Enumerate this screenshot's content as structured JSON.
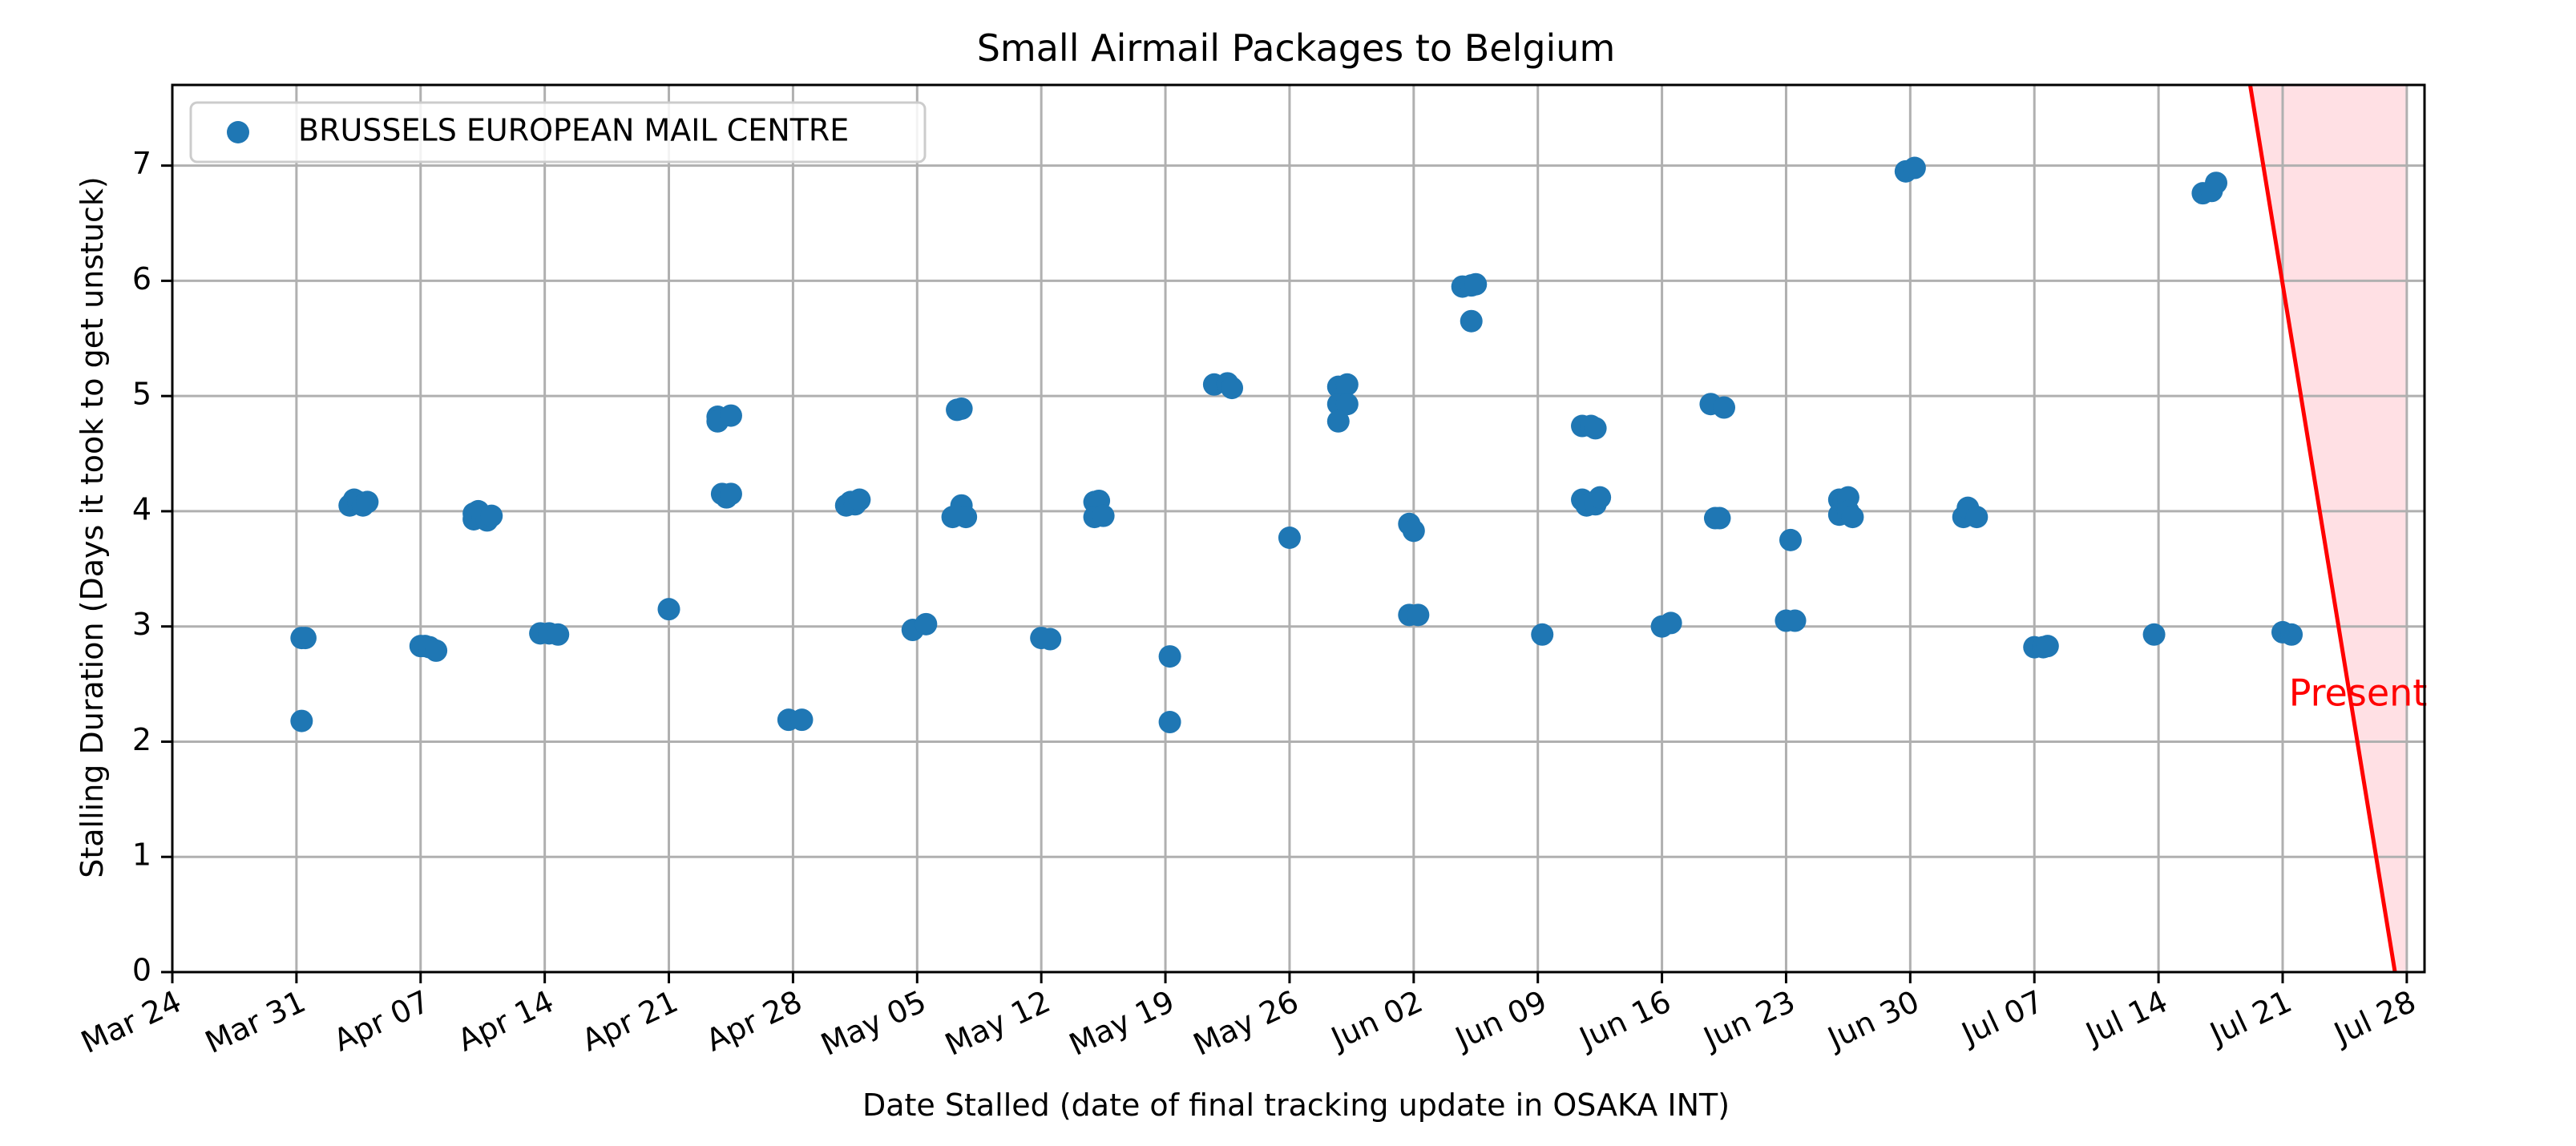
{
  "chart_data": {
    "type": "scatter",
    "title": "Small Airmail Packages to Belgium",
    "xlabel": "Date Stalled (date of final tracking update in OSAKA INT)",
    "ylabel": "Stalling Duration (Days it took to get unstuck)",
    "x_type": "date",
    "xlim": [
      "2024-03-24",
      "2024-07-29"
    ],
    "ylim": [
      0,
      7.7
    ],
    "x_ticks": [
      {
        "label": "Mar 24",
        "date": "2024-03-24"
      },
      {
        "label": "Mar 31",
        "date": "2024-03-31"
      },
      {
        "label": "Apr 07",
        "date": "2024-04-07"
      },
      {
        "label": "Apr 14",
        "date": "2024-04-14"
      },
      {
        "label": "Apr 21",
        "date": "2024-04-21"
      },
      {
        "label": "Apr 28",
        "date": "2024-04-28"
      },
      {
        "label": "May 05",
        "date": "2024-05-05"
      },
      {
        "label": "May 12",
        "date": "2024-05-12"
      },
      {
        "label": "May 19",
        "date": "2024-05-19"
      },
      {
        "label": "May 26",
        "date": "2024-05-26"
      },
      {
        "label": "Jun 02",
        "date": "2024-06-02"
      },
      {
        "label": "Jun 09",
        "date": "2024-06-09"
      },
      {
        "label": "Jun 16",
        "date": "2024-06-16"
      },
      {
        "label": "Jun 23",
        "date": "2024-06-23"
      },
      {
        "label": "Jun 30",
        "date": "2024-06-30"
      },
      {
        "label": "Jul 07",
        "date": "2024-07-07"
      },
      {
        "label": "Jul 14",
        "date": "2024-07-14"
      },
      {
        "label": "Jul 21",
        "date": "2024-07-21"
      },
      {
        "label": "Jul 28",
        "date": "2024-07-28"
      }
    ],
    "y_ticks": [
      0,
      1,
      2,
      3,
      4,
      5,
      6,
      7
    ],
    "grid": true,
    "legend": {
      "placement": "top-left"
    },
    "series": [
      {
        "name": "BRUSSELS EUROPEAN MAIL CENTRE",
        "color": "#1f77b4",
        "points": [
          {
            "x": "2024-03-31 07:00",
            "y": 2.9
          },
          {
            "x": "2024-03-31 12:00",
            "y": 2.9
          },
          {
            "x": "2024-03-31 07:00",
            "y": 2.18
          },
          {
            "x": "2024-04-03 00:00",
            "y": 4.05
          },
          {
            "x": "2024-04-03 06:00",
            "y": 4.1
          },
          {
            "x": "2024-04-03 12:00",
            "y": 4.08
          },
          {
            "x": "2024-04-03 18:00",
            "y": 4.05
          },
          {
            "x": "2024-04-04 00:00",
            "y": 4.08
          },
          {
            "x": "2024-04-07 00:00",
            "y": 2.83
          },
          {
            "x": "2024-04-07 06:00",
            "y": 2.83
          },
          {
            "x": "2024-04-07 12:00",
            "y": 2.82
          },
          {
            "x": "2024-04-07 21:00",
            "y": 2.79
          },
          {
            "x": "2024-04-10 00:00",
            "y": 3.98
          },
          {
            "x": "2024-04-10 00:00",
            "y": 3.93
          },
          {
            "x": "2024-04-10 06:00",
            "y": 4.0
          },
          {
            "x": "2024-04-10 12:00",
            "y": 3.95
          },
          {
            "x": "2024-04-10 18:00",
            "y": 3.92
          },
          {
            "x": "2024-04-11 00:00",
            "y": 3.96
          },
          {
            "x": "2024-04-13 18:00",
            "y": 2.94
          },
          {
            "x": "2024-04-14 06:00",
            "y": 2.94
          },
          {
            "x": "2024-04-14 18:00",
            "y": 2.93
          },
          {
            "x": "2024-04-21 00:00",
            "y": 3.15
          },
          {
            "x": "2024-04-23 18:00",
            "y": 4.82
          },
          {
            "x": "2024-04-23 18:00",
            "y": 4.78
          },
          {
            "x": "2024-04-24 12:00",
            "y": 4.83
          },
          {
            "x": "2024-04-24 00:00",
            "y": 4.15
          },
          {
            "x": "2024-04-24 06:00",
            "y": 4.12
          },
          {
            "x": "2024-04-24 12:00",
            "y": 4.15
          },
          {
            "x": "2024-04-27 18:00",
            "y": 2.19
          },
          {
            "x": "2024-04-28 12:00",
            "y": 2.19
          },
          {
            "x": "2024-05-01 00:00",
            "y": 4.05
          },
          {
            "x": "2024-05-01 06:00",
            "y": 4.08
          },
          {
            "x": "2024-05-01 12:00",
            "y": 4.06
          },
          {
            "x": "2024-05-01 18:00",
            "y": 4.1
          },
          {
            "x": "2024-05-04 18:00",
            "y": 2.97
          },
          {
            "x": "2024-05-05 12:00",
            "y": 3.02
          },
          {
            "x": "2024-05-07 06:00",
            "y": 4.88
          },
          {
            "x": "2024-05-07 12:00",
            "y": 4.89
          },
          {
            "x": "2024-05-07 00:00",
            "y": 3.95
          },
          {
            "x": "2024-05-07 12:00",
            "y": 4.05
          },
          {
            "x": "2024-05-07 18:00",
            "y": 3.95
          },
          {
            "x": "2024-05-12 00:00",
            "y": 2.9
          },
          {
            "x": "2024-05-12 12:00",
            "y": 2.89
          },
          {
            "x": "2024-05-15 00:00",
            "y": 4.08
          },
          {
            "x": "2024-05-15 06:00",
            "y": 4.09
          },
          {
            "x": "2024-05-15 00:00",
            "y": 3.95
          },
          {
            "x": "2024-05-15 12:00",
            "y": 3.96
          },
          {
            "x": "2024-05-19 06:00",
            "y": 2.74
          },
          {
            "x": "2024-05-19 06:00",
            "y": 2.17
          },
          {
            "x": "2024-05-21 18:00",
            "y": 5.1
          },
          {
            "x": "2024-05-22 12:00",
            "y": 5.11
          },
          {
            "x": "2024-05-22 18:00",
            "y": 5.07
          },
          {
            "x": "2024-05-26 00:00",
            "y": 3.77
          },
          {
            "x": "2024-05-28 18:00",
            "y": 5.08
          },
          {
            "x": "2024-05-29 06:00",
            "y": 5.1
          },
          {
            "x": "2024-05-28 18:00",
            "y": 4.93
          },
          {
            "x": "2024-05-29 06:00",
            "y": 4.93
          },
          {
            "x": "2024-05-28 18:00",
            "y": 4.78
          },
          {
            "x": "2024-06-01 18:00",
            "y": 3.89
          },
          {
            "x": "2024-06-02 00:00",
            "y": 3.83
          },
          {
            "x": "2024-06-01 18:00",
            "y": 3.1
          },
          {
            "x": "2024-06-02 06:00",
            "y": 3.1
          },
          {
            "x": "2024-06-04 18:00",
            "y": 5.95
          },
          {
            "x": "2024-06-05 06:00",
            "y": 5.96
          },
          {
            "x": "2024-06-05 12:00",
            "y": 5.97
          },
          {
            "x": "2024-06-05 06:00",
            "y": 5.65
          },
          {
            "x": "2024-06-09 06:00",
            "y": 2.93
          },
          {
            "x": "2024-06-11 12:00",
            "y": 4.74
          },
          {
            "x": "2024-06-12 00:00",
            "y": 4.74
          },
          {
            "x": "2024-06-12 06:00",
            "y": 4.72
          },
          {
            "x": "2024-06-11 12:00",
            "y": 4.1
          },
          {
            "x": "2024-06-11 18:00",
            "y": 4.05
          },
          {
            "x": "2024-06-12 06:00",
            "y": 4.06
          },
          {
            "x": "2024-06-12 12:00",
            "y": 4.12
          },
          {
            "x": "2024-06-16 00:00",
            "y": 3.0
          },
          {
            "x": "2024-06-16 12:00",
            "y": 3.03
          },
          {
            "x": "2024-06-18 18:00",
            "y": 4.93
          },
          {
            "x": "2024-06-19 12:00",
            "y": 4.9
          },
          {
            "x": "2024-06-19 00:00",
            "y": 3.94
          },
          {
            "x": "2024-06-19 06:00",
            "y": 3.94
          },
          {
            "x": "2024-06-23 06:00",
            "y": 3.75
          },
          {
            "x": "2024-06-23 00:00",
            "y": 3.05
          },
          {
            "x": "2024-06-23 12:00",
            "y": 3.05
          },
          {
            "x": "2024-06-26 00:00",
            "y": 4.1
          },
          {
            "x": "2024-06-26 06:00",
            "y": 4.08
          },
          {
            "x": "2024-06-26 12:00",
            "y": 4.12
          },
          {
            "x": "2024-06-26 00:00",
            "y": 3.97
          },
          {
            "x": "2024-06-26 12:00",
            "y": 4.0
          },
          {
            "x": "2024-06-26 18:00",
            "y": 3.95
          },
          {
            "x": "2024-06-29 18:00",
            "y": 6.95
          },
          {
            "x": "2024-06-30 06:00",
            "y": 6.98
          },
          {
            "x": "2024-07-03 00:00",
            "y": 3.95
          },
          {
            "x": "2024-07-03 06:00",
            "y": 4.03
          },
          {
            "x": "2024-07-03 18:00",
            "y": 3.95
          },
          {
            "x": "2024-07-07 00:00",
            "y": 2.82
          },
          {
            "x": "2024-07-07 12:00",
            "y": 2.82
          },
          {
            "x": "2024-07-07 18:00",
            "y": 2.83
          },
          {
            "x": "2024-07-13 18:00",
            "y": 2.93
          },
          {
            "x": "2024-07-16 12:00",
            "y": 6.76
          },
          {
            "x": "2024-07-17 00:00",
            "y": 6.78
          },
          {
            "x": "2024-07-17 06:00",
            "y": 6.85
          },
          {
            "x": "2024-07-21 00:00",
            "y": 2.95
          },
          {
            "x": "2024-07-21 12:00",
            "y": 2.93
          }
        ]
      }
    ],
    "annotations": [
      {
        "text": "Present",
        "color": "#ff0000",
        "line": {
          "from": {
            "x": "2024-07-19 04:00",
            "y": 7.7
          },
          "to": {
            "x": "2024-07-27 08:00",
            "y": 0
          }
        },
        "shaded_until": "2024-07-28",
        "shade_color": "#ffe0e4",
        "label_at": {
          "x": "2024-07-25 06:00",
          "y": 2.4
        }
      }
    ]
  }
}
